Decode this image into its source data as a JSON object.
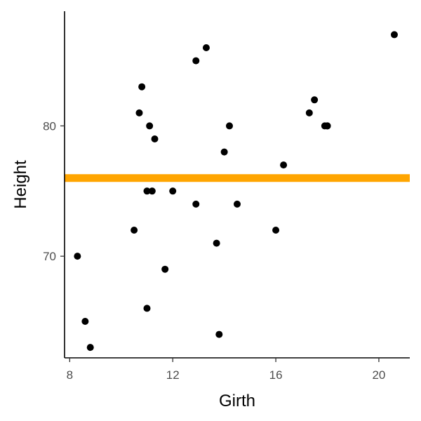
{
  "chart_data": {
    "type": "scatter",
    "title": "",
    "xlabel": "Girth",
    "ylabel": "Height",
    "xlim": [
      7.8,
      21.2
    ],
    "ylim": [
      62.2,
      88.8
    ],
    "x_ticks": [
      8,
      12,
      16,
      20
    ],
    "y_ticks": [
      70,
      80
    ],
    "grid": false,
    "legend": "none",
    "point_color": "#000000",
    "reference_line": {
      "orientation": "horizontal",
      "y": 76,
      "color": "#FFA500"
    },
    "series": [
      {
        "points": [
          {
            "x": 8.3,
            "y": 70
          },
          {
            "x": 8.6,
            "y": 65
          },
          {
            "x": 8.8,
            "y": 63
          },
          {
            "x": 10.5,
            "y": 72
          },
          {
            "x": 10.7,
            "y": 81
          },
          {
            "x": 10.8,
            "y": 83
          },
          {
            "x": 11.0,
            "y": 66
          },
          {
            "x": 11.0,
            "y": 75
          },
          {
            "x": 11.1,
            "y": 80
          },
          {
            "x": 11.2,
            "y": 75
          },
          {
            "x": 11.3,
            "y": 79
          },
          {
            "x": 11.4,
            "y": 76
          },
          {
            "x": 11.7,
            "y": 69
          },
          {
            "x": 12.0,
            "y": 75
          },
          {
            "x": 12.9,
            "y": 74
          },
          {
            "x": 12.9,
            "y": 85
          },
          {
            "x": 13.3,
            "y": 86
          },
          {
            "x": 13.7,
            "y": 71
          },
          {
            "x": 13.8,
            "y": 64
          },
          {
            "x": 14.0,
            "y": 78
          },
          {
            "x": 14.2,
            "y": 80
          },
          {
            "x": 14.5,
            "y": 74
          },
          {
            "x": 16.0,
            "y": 72
          },
          {
            "x": 16.3,
            "y": 77
          },
          {
            "x": 17.3,
            "y": 81
          },
          {
            "x": 17.5,
            "y": 82
          },
          {
            "x": 17.9,
            "y": 80
          },
          {
            "x": 18.0,
            "y": 80
          },
          {
            "x": 18.0,
            "y": 80
          },
          {
            "x": 20.6,
            "y": 87
          }
        ]
      }
    ]
  }
}
